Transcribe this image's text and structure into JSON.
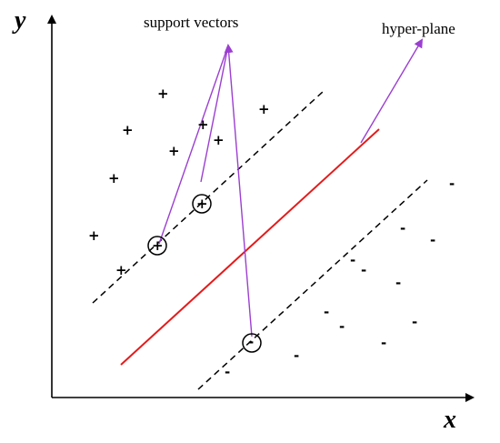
{
  "axes": {
    "x_label": "x",
    "y_label": "y"
  },
  "annotations": {
    "support_vectors": "support vectors",
    "hyper_plane": "hyper-plane"
  },
  "classes": {
    "positive_symbol": "+",
    "negative_symbol": "-"
  },
  "colors": {
    "hyperplane": "#e41b1b",
    "annotation_arrows": "#9b3fd0",
    "axes": "#000000",
    "margins": "#000000"
  }
}
